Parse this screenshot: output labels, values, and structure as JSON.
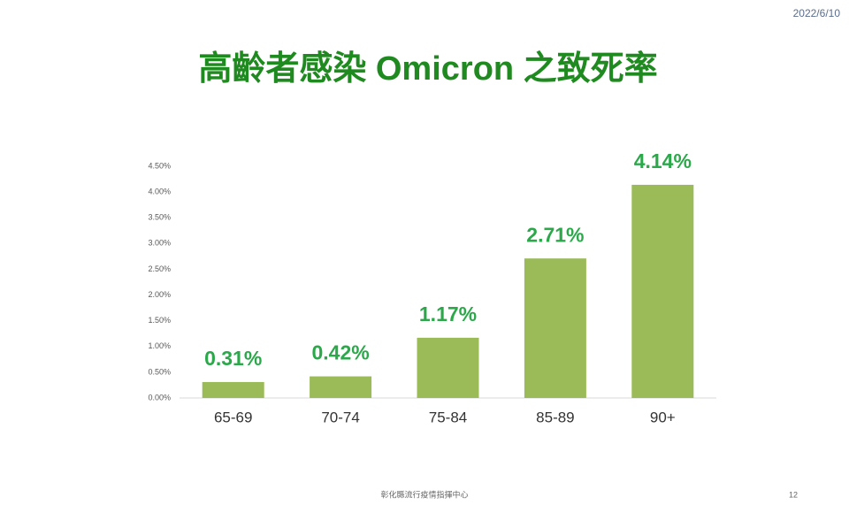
{
  "date": "2022/6/10",
  "chart_data": {
    "type": "bar",
    "title": "高齡者感染 Omicron 之致死率",
    "categories": [
      "65-69",
      "70-74",
      "75-84",
      "85-89",
      "90+"
    ],
    "values": [
      0.31,
      0.42,
      1.17,
      2.71,
      4.14
    ],
    "value_labels": [
      "0.31%",
      "0.42%",
      "1.17%",
      "2.71%",
      "4.14%"
    ],
    "color": "#9bbb59",
    "ylim": [
      0,
      4.5
    ],
    "yticks": [
      {
        "value": 0,
        "label": "0.00%"
      },
      {
        "value": 0.5,
        "label": "0.50%"
      },
      {
        "value": 1,
        "label": "1.00%"
      },
      {
        "value": 1.5,
        "label": "1.50%"
      },
      {
        "value": 2,
        "label": "2.00%"
      },
      {
        "value": 2.5,
        "label": "2.50%"
      },
      {
        "value": 3,
        "label": "3.00%"
      },
      {
        "value": 3.5,
        "label": "3.50%"
      },
      {
        "value": 4,
        "label": "4.00%"
      },
      {
        "value": 4.5,
        "label": "4.50%"
      }
    ],
    "grid": false
  },
  "footer": "彰化縣流行疫情指揮中心",
  "page_number": "12"
}
